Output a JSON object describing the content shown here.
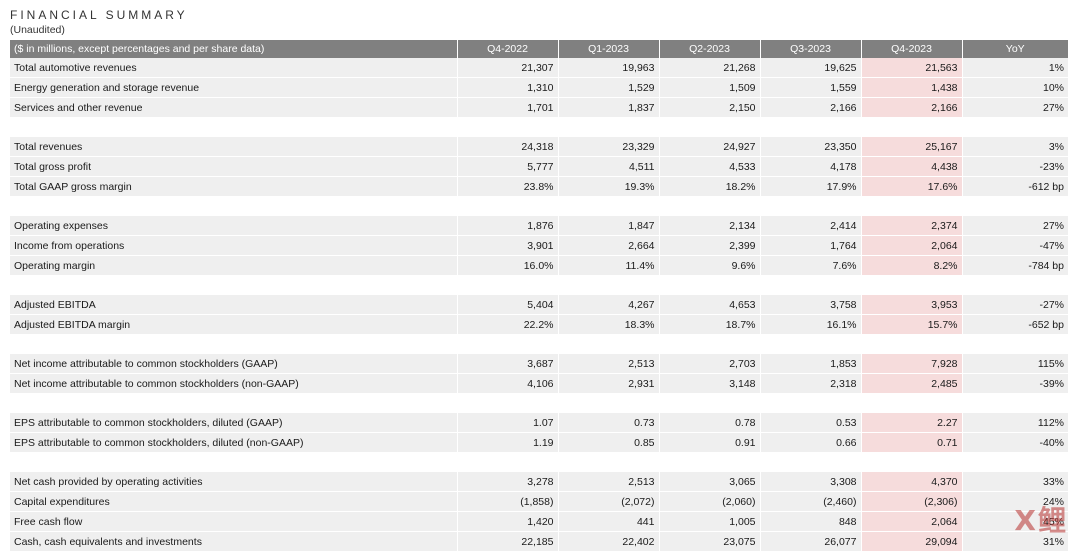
{
  "title": "FINANCIAL SUMMARY",
  "subtitle": "(Unaudited)",
  "table": {
    "headers": [
      "($ in millions, except percentages and per share data)",
      "Q4-2022",
      "Q1-2023",
      "Q2-2023",
      "Q3-2023",
      "Q4-2023",
      "YoY"
    ],
    "groups": [
      [
        [
          "Total automotive revenues",
          "21,307",
          "19,963",
          "21,268",
          "19,625",
          "21,563",
          "1%"
        ],
        [
          "Energy generation and storage revenue",
          "1,310",
          "1,529",
          "1,509",
          "1,559",
          "1,438",
          "10%"
        ],
        [
          "Services and other revenue",
          "1,701",
          "1,837",
          "2,150",
          "2,166",
          "2,166",
          "27%"
        ]
      ],
      [
        [
          "Total revenues",
          "24,318",
          "23,329",
          "24,927",
          "23,350",
          "25,167",
          "3%"
        ],
        [
          "Total gross profit",
          "5,777",
          "4,511",
          "4,533",
          "4,178",
          "4,438",
          "-23%"
        ],
        [
          "Total GAAP gross margin",
          "23.8%",
          "19.3%",
          "18.2%",
          "17.9%",
          "17.6%",
          "-612 bp"
        ]
      ],
      [
        [
          "Operating expenses",
          "1,876",
          "1,847",
          "2,134",
          "2,414",
          "2,374",
          "27%"
        ],
        [
          "Income from operations",
          "3,901",
          "2,664",
          "2,399",
          "1,764",
          "2,064",
          "-47%"
        ],
        [
          "Operating margin",
          "16.0%",
          "11.4%",
          "9.6%",
          "7.6%",
          "8.2%",
          "-784 bp"
        ]
      ],
      [
        [
          "Adjusted EBITDA",
          "5,404",
          "4,267",
          "4,653",
          "3,758",
          "3,953",
          "-27%"
        ],
        [
          "Adjusted EBITDA margin",
          "22.2%",
          "18.3%",
          "18.7%",
          "16.1%",
          "15.7%",
          "-652 bp"
        ]
      ],
      [
        [
          "Net income attributable to common stockholders (GAAP)",
          "3,687",
          "2,513",
          "2,703",
          "1,853",
          "7,928",
          "115%"
        ],
        [
          "Net income attributable to common stockholders (non-GAAP)",
          "4,106",
          "2,931",
          "3,148",
          "2,318",
          "2,485",
          "-39%"
        ]
      ],
      [
        [
          "EPS attributable to common stockholders, diluted (GAAP)",
          "1.07",
          "0.73",
          "0.78",
          "0.53",
          "2.27",
          "112%"
        ],
        [
          "EPS attributable to common stockholders, diluted (non-GAAP)",
          "1.19",
          "0.85",
          "0.91",
          "0.66",
          "0.71",
          "-40%"
        ]
      ],
      [
        [
          "Net cash provided by operating activities",
          "3,278",
          "2,513",
          "3,065",
          "3,308",
          "4,370",
          "33%"
        ],
        [
          "Capital expenditures",
          "(1,858)",
          "(2,072)",
          "(2,060)",
          "(2,460)",
          "(2,306)",
          "24%"
        ],
        [
          "Free cash flow",
          "1,420",
          "441",
          "1,005",
          "848",
          "2,064",
          "45%"
        ],
        [
          "Cash, cash equivalents and investments",
          "22,185",
          "22,402",
          "23,075",
          "26,077",
          "29,094",
          "31%"
        ]
      ]
    ]
  },
  "watermark": "X鲤",
  "colors": {
    "header_bg": "#808080",
    "row_bg": "#efefef",
    "highlight_bg": "#f6dcdc"
  }
}
